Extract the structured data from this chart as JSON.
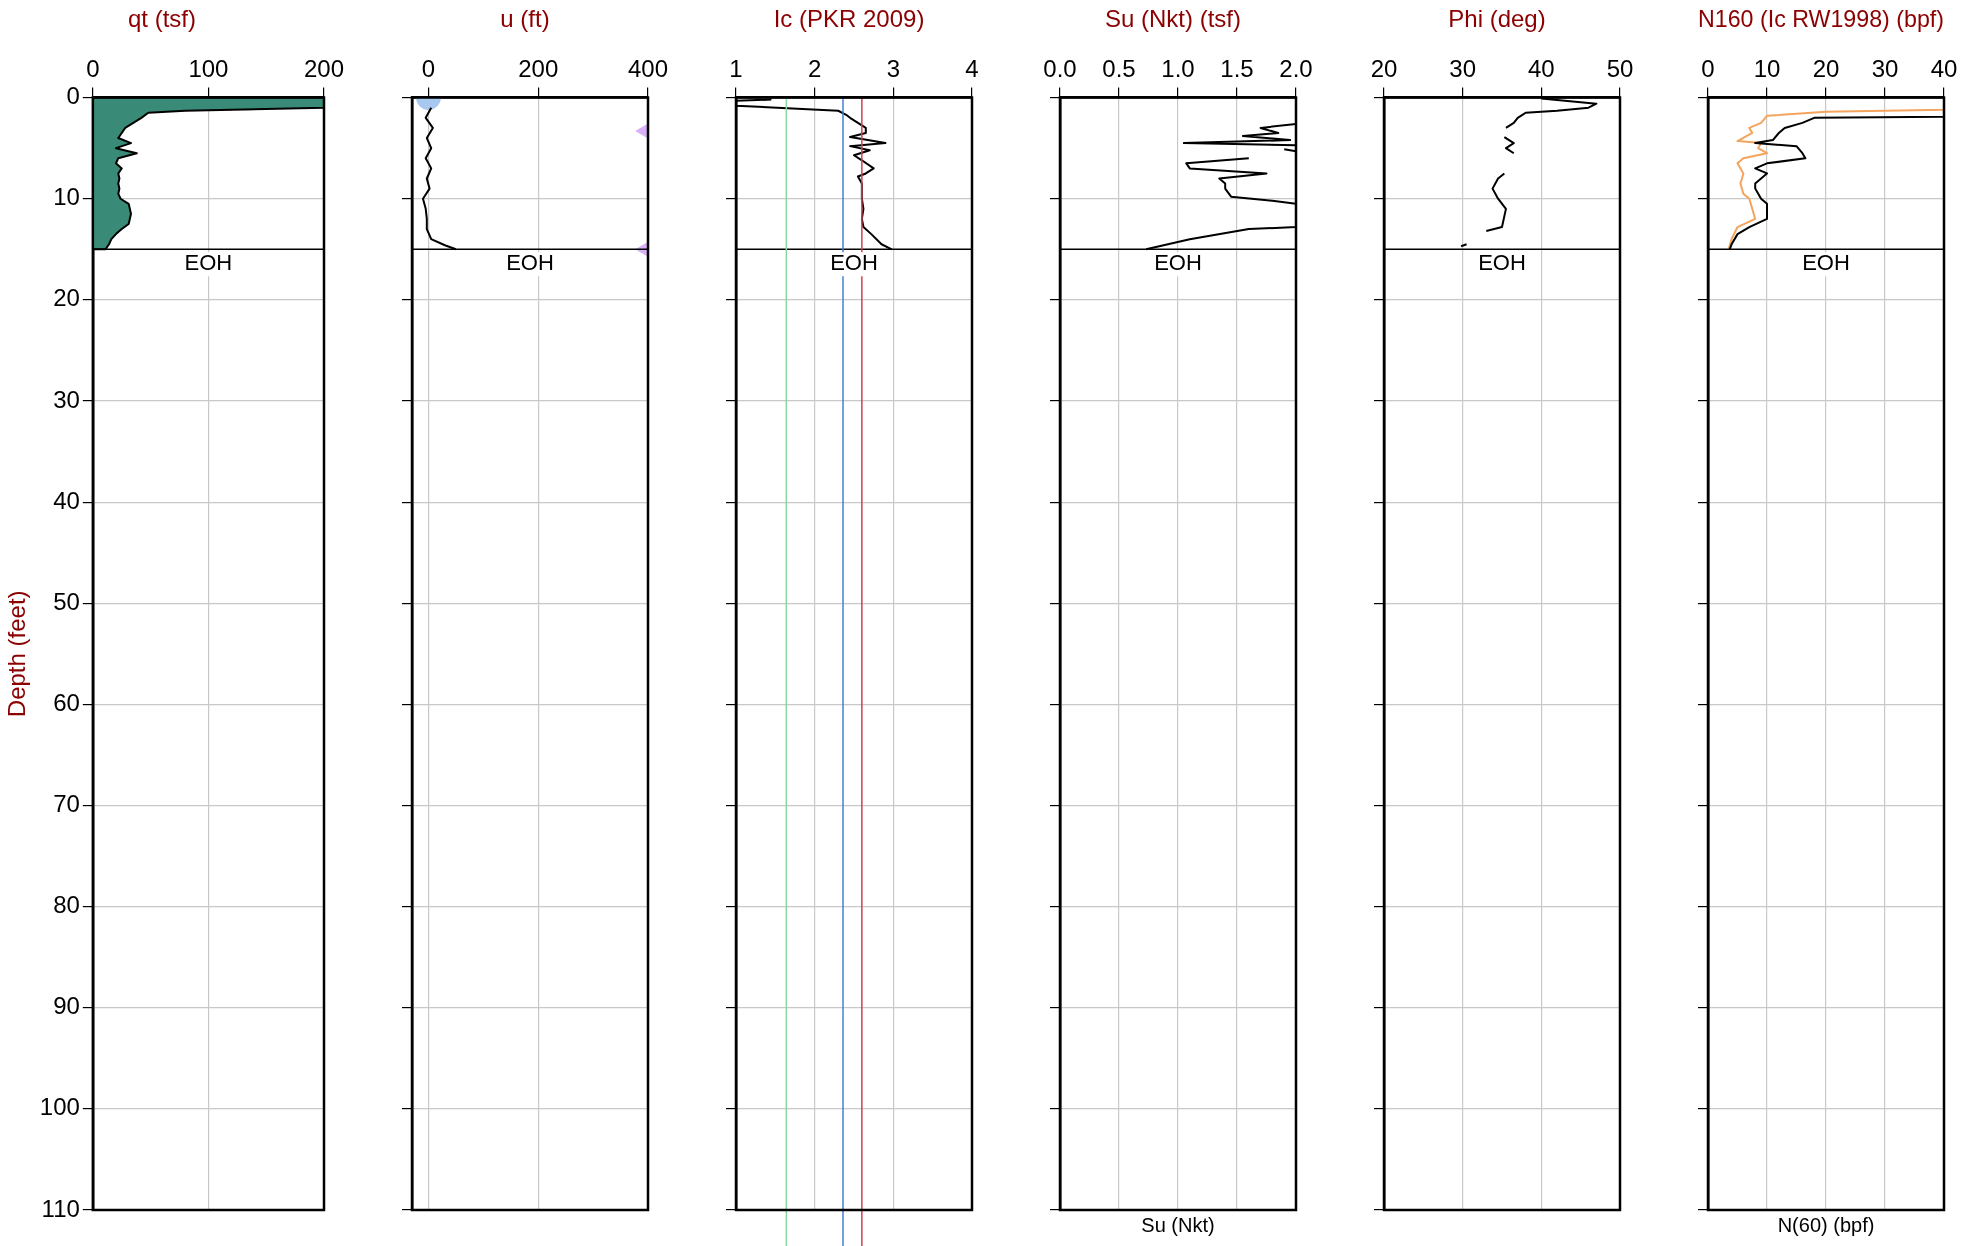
{
  "chart_data": [
    {
      "type": "area",
      "title": "qt (tsf)",
      "ylabel": "Depth (feet)",
      "xlim": [
        0,
        200
      ],
      "xticks": [
        0,
        100,
        200
      ],
      "ylim": [
        110,
        0
      ],
      "yticks": [
        0,
        10,
        20,
        30,
        40,
        50,
        60,
        70,
        80,
        90,
        100,
        110
      ],
      "grid": true,
      "series": [
        {
          "color": "#3a8a78",
          "x": [
            0,
            200,
            200,
            80,
            48,
            42,
            35,
            28,
            25,
            22,
            33,
            20,
            38,
            22,
            20,
            25,
            22,
            23,
            22,
            23,
            22,
            24,
            31,
            32,
            33,
            32,
            31,
            25,
            20,
            16,
            14,
            11,
            0
          ],
          "values": [
            0,
            0,
            1.0,
            1.3,
            1.5,
            2,
            2.5,
            3,
            3.5,
            4,
            4.5,
            5,
            5.5,
            6,
            6.5,
            7,
            7.5,
            8,
            8.5,
            9,
            9.5,
            10,
            10.5,
            11,
            11.5,
            12,
            12.5,
            13,
            13.5,
            14,
            14.5,
            15,
            15
          ]
        }
      ],
      "ref_lines": [
        {
          "axis": "y",
          "value": 15,
          "label": "EOH",
          "color": "#000000"
        }
      ]
    },
    {
      "type": "line",
      "title": "u (ft)",
      "xlim": [
        -30,
        400
      ],
      "xticks": [
        0,
        200,
        400
      ],
      "ylim": [
        110,
        0
      ],
      "yticks": [
        0,
        10,
        20,
        30,
        40,
        50,
        60,
        70,
        80,
        90,
        100,
        110
      ],
      "grid": true,
      "tick_labels": "x",
      "series": [
        {
          "color": "#000000",
          "marker": "none",
          "x": [
            5,
            -5,
            8,
            -3,
            5,
            -5,
            5,
            -3,
            2,
            -10,
            -5,
            -3,
            -3,
            5,
            30,
            50
          ],
          "values": [
            1,
            2,
            3,
            4,
            5,
            6,
            7,
            8,
            9,
            10,
            11,
            12,
            13,
            14,
            14.6,
            15
          ]
        },
        {
          "type": "scatter",
          "color": "#a8c8f0",
          "marker": "circle",
          "x": [
            0
          ],
          "values": [
            0
          ]
        },
        {
          "type": "scatter",
          "color": "#d8b0f8",
          "marker": "triangle",
          "x": [
            400,
            400
          ],
          "values": [
            3.3,
            15
          ]
        }
      ],
      "ref_lines": [
        {
          "axis": "y",
          "value": 15,
          "label": "EOH",
          "color": "#000000"
        }
      ]
    },
    {
      "type": "line",
      "title": "Ic (PKR 2009)",
      "xlim": [
        1,
        4
      ],
      "xticks": [
        1,
        2,
        3,
        4
      ],
      "ylim": [
        110,
        0
      ],
      "yticks": [
        0,
        10,
        20,
        30,
        40,
        50,
        60,
        70,
        80,
        90,
        100,
        110
      ],
      "grid": true,
      "tick_labels": "x",
      "series": [
        {
          "color": "#000000",
          "marker": "none",
          "x": [
            1.45,
            1.0,
            1.0,
            2.3,
            2.4,
            2.45,
            2.55,
            2.65,
            2.65,
            2.45,
            2.9,
            2.45,
            2.7,
            2.5,
            2.6,
            2.75,
            2.65,
            2.55,
            2.6,
            2.6,
            2.62,
            2.6,
            2.62,
            2.72,
            2.85,
            2.98
          ],
          "values": [
            0.2,
            0.3,
            0.8,
            1.3,
            1.7,
            2,
            2.5,
            3,
            3.5,
            3.9,
            4.5,
            4.8,
            5.2,
            5.7,
            6.2,
            7,
            7.5,
            7.8,
            8.5,
            10,
            11,
            12,
            12.8,
            13.5,
            14.5,
            15
          ]
        }
      ],
      "ref_lines": [
        {
          "axis": "y",
          "value": 15,
          "label": "EOH",
          "color": "#000000"
        },
        {
          "axis": "x",
          "value": 1.64,
          "color": "#88d8a0"
        },
        {
          "axis": "x",
          "value": 2.36,
          "color": "#4a7fd0"
        },
        {
          "axis": "x",
          "value": 2.6,
          "color": "#d04050"
        }
      ]
    },
    {
      "type": "line",
      "title": "Su (Nkt) (tsf)",
      "xlabel": "Su (Nkt)",
      "xlim": [
        0,
        2
      ],
      "xticks": [
        {
          "value": 0,
          "label": "0.0"
        },
        {
          "value": 0.5,
          "label": "0.5"
        },
        {
          "value": 1,
          "label": "1.0"
        },
        {
          "value": 1.5,
          "label": "1.5"
        },
        {
          "value": 2,
          "label": "2.0"
        }
      ],
      "ylim": [
        110,
        0
      ],
      "yticks": [
        0,
        10,
        20,
        30,
        40,
        50,
        60,
        70,
        80,
        90,
        100,
        110
      ],
      "grid": true,
      "tick_labels": "x",
      "series": [
        {
          "color": "#000000",
          "marker": "none",
          "x": [
            2.0,
            1.7,
            1.85,
            1.55,
            1.95,
            1.05,
            2.0
          ],
          "values": [
            2.6,
            3,
            3.5,
            3.8,
            4.2,
            4.5,
            4.7
          ]
        },
        {
          "color": "#000000",
          "marker": "none",
          "x": [
            1.9,
            2.0
          ],
          "values": [
            5.1,
            5.3
          ]
        },
        {
          "color": "#000000",
          "marker": "none",
          "x": [
            1.6,
            1.07,
            1.1,
            1.75,
            1.35,
            1.4,
            1.4,
            1.45,
            1.8,
            2.0,
            2.0,
            1.6,
            1.1,
            0.73
          ],
          "values": [
            6,
            6.5,
            7,
            7.5,
            8,
            8.5,
            9,
            9.8,
            10.2,
            10.5,
            12.8,
            13,
            14,
            15
          ]
        }
      ],
      "ref_lines": [
        {
          "axis": "y",
          "value": 15,
          "label": "EOH",
          "color": "#000000"
        }
      ]
    },
    {
      "type": "line",
      "title": "Phi (deg)",
      "xlim": [
        20,
        50
      ],
      "xticks": [
        20,
        30,
        40,
        50
      ],
      "ylim": [
        110,
        0
      ],
      "yticks": [
        0,
        10,
        20,
        30,
        40,
        50,
        60,
        70,
        80,
        90,
        100,
        110
      ],
      "grid": true,
      "tick_labels": "x",
      "series": [
        {
          "color": "#000000",
          "marker": "none",
          "x": [
            40,
            43,
            47,
            46,
            42,
            38,
            37,
            36.5,
            35.5
          ],
          "values": [
            0.1,
            0.3,
            0.6,
            1,
            1.3,
            1.5,
            2,
            2.5,
            3
          ]
        },
        {
          "color": "#000000",
          "marker": "none",
          "x": [
            35.3,
            36.5,
            35.5,
            36.5
          ],
          "values": [
            3.9,
            4.5,
            5,
            5.5
          ]
        },
        {
          "color": "#000000",
          "marker": "none",
          "x": [
            35.3,
            34.5,
            33.8,
            34.5,
            35.5,
            35,
            33
          ],
          "values": [
            7.5,
            8,
            9,
            10,
            11,
            12.8,
            13.2
          ]
        },
        {
          "color": "#000000",
          "marker": "none",
          "x": [
            30.5,
            29.8
          ],
          "values": [
            14.5,
            14.7
          ]
        }
      ],
      "ref_lines": [
        {
          "axis": "y",
          "value": 15,
          "label": "EOH",
          "color": "#000000"
        }
      ]
    },
    {
      "type": "line",
      "title": "N160 (Ic RW1998) (bpf)",
      "xlabel": "N(60) (bpf)",
      "xlim": [
        0,
        40
      ],
      "xticks": [
        0,
        10,
        20,
        30,
        40
      ],
      "ylim": [
        110,
        0
      ],
      "yticks": [
        0,
        10,
        20,
        30,
        40,
        50,
        60,
        70,
        80,
        90,
        100,
        110
      ],
      "grid": true,
      "tick_labels": "x",
      "series": [
        {
          "color": "#000000",
          "marker": "none",
          "x": [
            40,
            40,
            18,
            16,
            13,
            12,
            11,
            8,
            15,
            16,
            16.5,
            10,
            8,
            10,
            9,
            8,
            8,
            9,
            10,
            10,
            7,
            5,
            4,
            3.7
          ],
          "values": [
            0.1,
            1.9,
            2,
            2.5,
            3,
            3.5,
            4.2,
            4.5,
            4.8,
            5.5,
            6,
            6.5,
            7,
            7.5,
            8,
            8.5,
            9,
            10,
            10.5,
            12,
            12.8,
            13.5,
            14.5,
            15
          ]
        },
        {
          "color": "#f4a45c",
          "marker": "none",
          "x": [
            40,
            40,
            20,
            10,
            9,
            7,
            7.5,
            5,
            9,
            8.5,
            10,
            6,
            5,
            6,
            5.5,
            6,
            7,
            7.5,
            8,
            5,
            4,
            3.5
          ],
          "values": [
            0,
            1.2,
            1.4,
            1.8,
            2.5,
            3,
            3.5,
            4.3,
            4.5,
            5,
            5.5,
            6,
            6.5,
            7.5,
            8.5,
            9.5,
            10,
            11,
            12,
            12.8,
            14,
            15
          ]
        }
      ],
      "ref_lines": [
        {
          "axis": "y",
          "value": 15,
          "label": "EOH",
          "color": "#000000"
        }
      ]
    }
  ]
}
